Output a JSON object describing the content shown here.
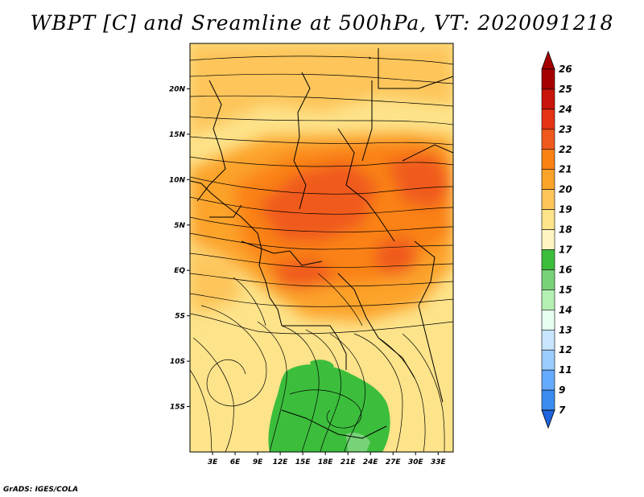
{
  "title": "WBPT [C] and Sreamline at 500hPa, VT: 2020091218",
  "credit": "GrADS: IGES/COLA",
  "map": {
    "lon_range": [
      0,
      35
    ],
    "lat_range": [
      -20,
      25
    ],
    "lat_ticks": [
      {
        "value": 20,
        "label": "20N"
      },
      {
        "value": 15,
        "label": "15N"
      },
      {
        "value": 10,
        "label": "10N"
      },
      {
        "value": 5,
        "label": "5N"
      },
      {
        "value": 0,
        "label": "EQ"
      },
      {
        "value": -5,
        "label": "5S"
      },
      {
        "value": -10,
        "label": "10S"
      },
      {
        "value": -15,
        "label": "15S"
      }
    ],
    "lon_ticks": [
      {
        "value": 3,
        "label": "3E"
      },
      {
        "value": 6,
        "label": "6E"
      },
      {
        "value": 9,
        "label": "9E"
      },
      {
        "value": 12,
        "label": "12E"
      },
      {
        "value": 15,
        "label": "15E"
      },
      {
        "value": 18,
        "label": "18E"
      },
      {
        "value": 21,
        "label": "21E"
      },
      {
        "value": 24,
        "label": "24E"
      },
      {
        "value": 27,
        "label": "27E"
      },
      {
        "value": 30,
        "label": "30E"
      },
      {
        "value": 33,
        "label": "33E"
      }
    ]
  },
  "colorbar": {
    "labels": [
      "26",
      "25",
      "24",
      "23",
      "22",
      "21",
      "20",
      "19",
      "18",
      "17",
      "16",
      "15",
      "14",
      "13",
      "12",
      "11",
      "9",
      "7"
    ],
    "colors": [
      "#a50000",
      "#c8140a",
      "#e63214",
      "#f05a1e",
      "#fa8214",
      "#fca32a",
      "#fdc55a",
      "#fde38a",
      "#fff5c0",
      "#3cbe3c",
      "#78d278",
      "#b4f0b4",
      "#e6fff0",
      "#c8e6ff",
      "#9bcdff",
      "#64aaff",
      "#3c8cf0",
      "#1e64dc"
    ]
  }
}
